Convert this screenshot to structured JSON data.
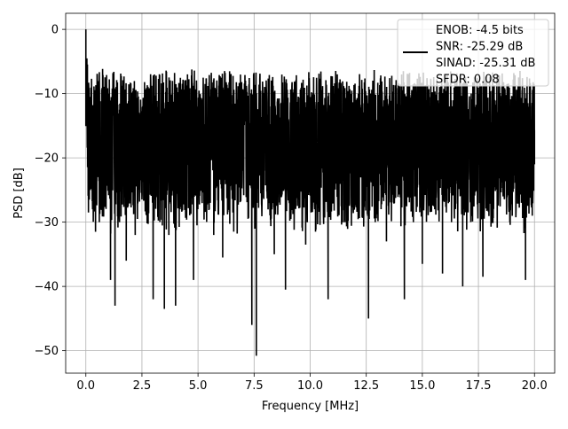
{
  "chart_data": {
    "type": "line",
    "xlabel": "Frequency [MHz]",
    "ylabel": "PSD [dB]",
    "xlim": [
      -0.9,
      20.9
    ],
    "ylim": [
      -53.5,
      2.5
    ],
    "xticks": [
      0.0,
      2.5,
      5.0,
      7.5,
      10.0,
      12.5,
      15.0,
      17.5,
      20.0
    ],
    "xtick_labels": [
      "0.0",
      "2.5",
      "5.0",
      "7.5",
      "10.0",
      "12.5",
      "15.0",
      "17.5",
      "20.0"
    ],
    "yticks": [
      0,
      -10,
      -20,
      -30,
      -40,
      -50
    ],
    "ytick_labels": [
      "0",
      "−10",
      "−20",
      "−30",
      "−40",
      "−50"
    ],
    "grid": true,
    "legend_position": "top-right",
    "line_color": "#000000",
    "series": [
      {
        "name": "ENOB: -4.5 bits\nSNR: -25.29 dB\nSINAD: -25.31 dB\nSFDR: 0.08",
        "approximate": true,
        "x": [
          0.0,
          0.1,
          0.2,
          0.3,
          0.6,
          0.9,
          1.1,
          1.3,
          1.5,
          1.8,
          2.2,
          2.6,
          2.75,
          3.0,
          3.4,
          3.5,
          3.7,
          4.0,
          4.2,
          4.4,
          4.8,
          5.5,
          5.7,
          6.1,
          6.7,
          7.1,
          7.4,
          7.6,
          8.0,
          8.4,
          8.9,
          9.3,
          9.8,
          10.2,
          10.8,
          11.2,
          11.6,
          12.0,
          12.6,
          12.9,
          13.4,
          13.8,
          14.2,
          14.6,
          15.0,
          15.4,
          15.9,
          16.3,
          16.8,
          17.2,
          17.7,
          18.3,
          18.6,
          18.9,
          19.3,
          19.6,
          19.9,
          20.0
        ],
        "y": [
          0.0,
          -12,
          -22,
          -28,
          -30,
          -15,
          -39,
          -43,
          -30,
          -36,
          -32,
          -25,
          -30,
          -42,
          -26,
          -43.5,
          -32,
          -43,
          -28,
          -26,
          -39,
          -28,
          -32,
          -35.5,
          -22,
          -14,
          -46,
          -50.8,
          -22,
          -35,
          -40.5,
          -26,
          -33.5,
          -28,
          -42,
          -26,
          -30,
          -21,
          -45,
          -30,
          -33,
          -26,
          -42,
          -30,
          -36.5,
          -26,
          -38,
          -30,
          -40,
          -26,
          -38.5,
          -23,
          -26,
          -30,
          -23,
          -39,
          -29,
          -21
        ]
      }
    ]
  }
}
